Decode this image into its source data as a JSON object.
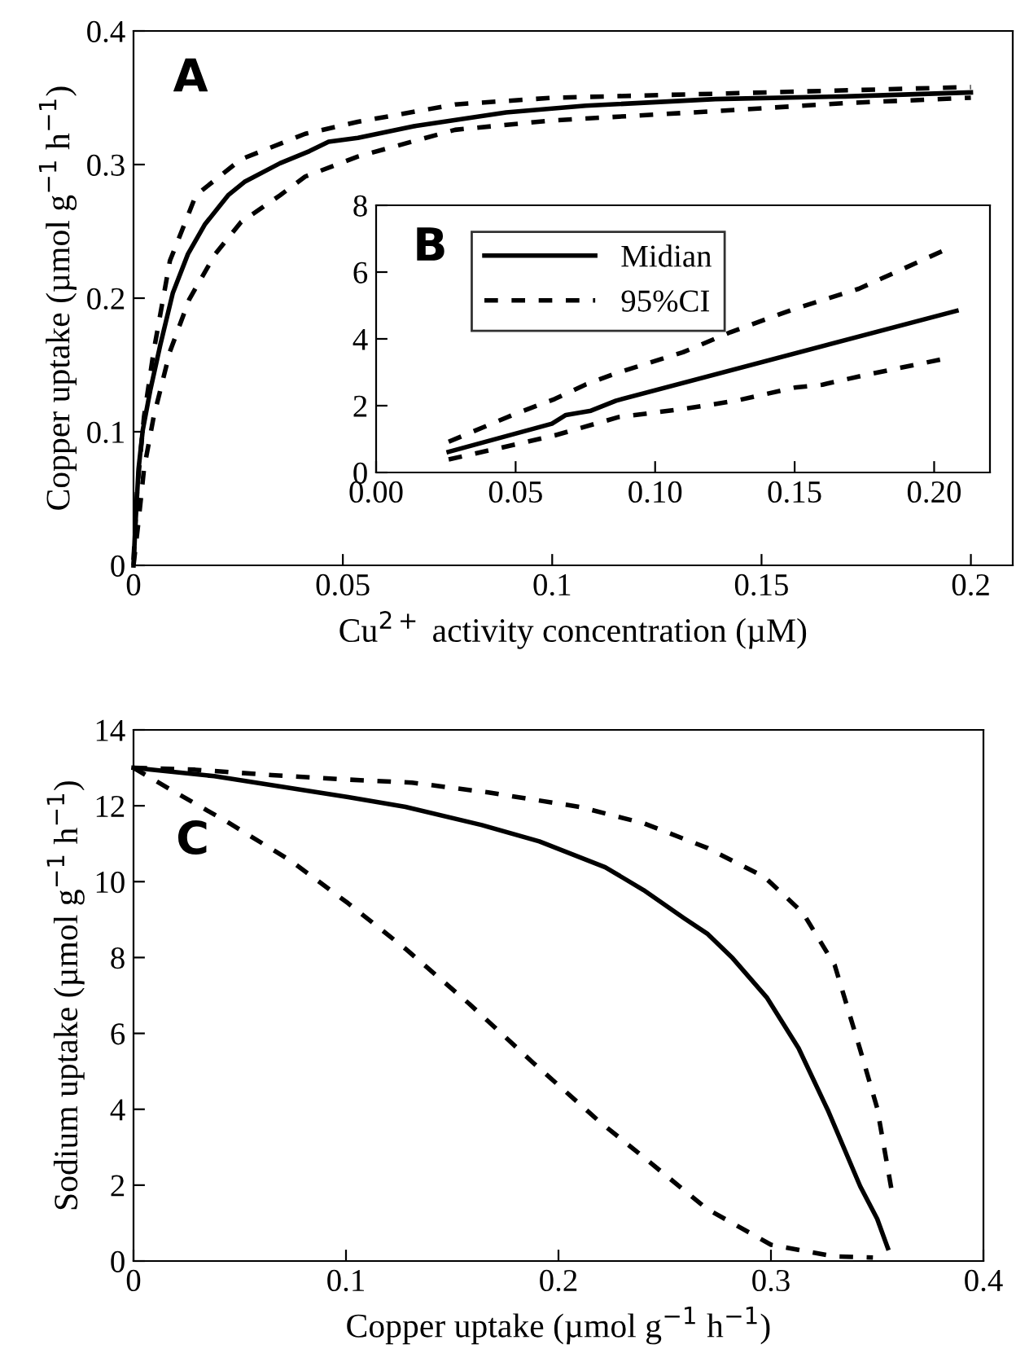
{
  "chart_data": [
    {
      "type": "line",
      "xlabel": "Cu$^{2+}$ activity concentration (µM)",
      "ylabel": "Copper uptake (µmol g$^{−1}$ h$^{−1}$)",
      "annotations": [
        "A"
      ],
      "xlim": [
        0,
        0.21
      ],
      "ylim": [
        0,
        0.4
      ],
      "xticks": [
        0,
        0.05,
        0.1,
        0.15,
        0.2
      ],
      "yticks": [
        0,
        0.1,
        0.2,
        0.3,
        0.4
      ],
      "grid": false,
      "legend": false,
      "marker": "none",
      "series": [
        {
          "color": "#000000",
          "line_style": "solid",
          "x": [
            0,
            0.0005,
            0.0012,
            0.0022,
            0.004,
            0.0064,
            0.0094,
            0.013,
            0.017,
            0.0226,
            0.0265,
            0.035,
            0.042,
            0.0466,
            0.0536,
            0.0675,
            0.089,
            0.108,
            0.139,
            0.17,
            0.2
          ],
          "values": [
            0,
            0.033,
            0.072,
            0.101,
            0.131,
            0.165,
            0.204,
            0.233,
            0.255,
            0.277,
            0.287,
            0.301,
            0.31,
            0.317,
            0.32,
            0.329,
            0.339,
            0.344,
            0.349,
            0.351,
            0.354
          ]
        },
        {
          "color": "#000000",
          "line_style": "dashed",
          "x": [
            0,
            0.0009,
            0.0025,
            0.0048,
            0.0087,
            0.0149,
            0.0257,
            0.041,
            0.0536,
            0.0768,
            0.1,
            0.139,
            0.2
          ],
          "values": [
            0.004,
            0.058,
            0.111,
            0.16,
            0.228,
            0.277,
            0.304,
            0.323,
            0.332,
            0.345,
            0.35,
            0.353,
            0.358
          ]
        },
        {
          "color": "#000000",
          "line_style": "dashed",
          "x": [
            0,
            0.0012,
            0.0025,
            0.0048,
            0.0087,
            0.0133,
            0.0195,
            0.0257,
            0.035,
            0.041,
            0.0536,
            0.0768,
            0.1,
            0.139,
            0.17,
            0.2
          ],
          "values": [
            0,
            0.033,
            0.072,
            0.111,
            0.16,
            0.199,
            0.233,
            0.257,
            0.277,
            0.291,
            0.306,
            0.326,
            0.333,
            0.34,
            0.346,
            0.35
          ]
        }
      ]
    },
    {
      "type": "line",
      "annotations": [
        "B"
      ],
      "xlim": [
        0,
        0.22
      ],
      "ylim": [
        0,
        8
      ],
      "xticks": [
        {
          "value": 0,
          "label": "0.00"
        },
        {
          "value": 0.05,
          "label": "0.05"
        },
        {
          "value": 0.1,
          "label": "0.10"
        },
        {
          "value": 0.15,
          "label": "0.15"
        },
        {
          "value": 0.2,
          "label": "0.20"
        }
      ],
      "yticks": [
        0,
        2,
        4,
        6,
        8
      ],
      "grid": false,
      "legend": "top left",
      "marker": "none",
      "series": [
        {
          "name": "Midian",
          "color": "#000000",
          "line_style": "solid",
          "x": [
            0.026,
            0.063,
            0.068,
            0.077,
            0.086,
            0.208
          ],
          "values": [
            0.62,
            1.46,
            1.72,
            1.85,
            2.15,
            4.84
          ]
        },
        {
          "name": "95%CI",
          "color": "#000000",
          "line_style": "dashed",
          "x": [
            0.026,
            0.05,
            0.064,
            0.075,
            0.087,
            0.11,
            0.127,
            0.15,
            0.173,
            0.203
          ],
          "values": [
            0.92,
            1.76,
            2.2,
            2.63,
            3.0,
            3.6,
            4.2,
            4.9,
            5.5,
            6.63
          ]
        },
        {
          "color": "#000000",
          "line_style": "dashed",
          "x": [
            0.026,
            0.05,
            0.064,
            0.087,
            0.11,
            0.129,
            0.15,
            0.16,
            0.176,
            0.204
          ],
          "values": [
            0.39,
            0.84,
            1.11,
            1.66,
            1.9,
            2.15,
            2.54,
            2.63,
            2.93,
            3.41
          ]
        }
      ]
    },
    {
      "type": "line",
      "xlabel": "Copper uptake (µmol g$^{−1}$ h$^{−1}$)",
      "ylabel": "Sodium uptake (µmol g$^{−1}$ h$^{−1}$)",
      "annotations": [
        "C"
      ],
      "xlim": [
        0,
        0.4
      ],
      "ylim": [
        0,
        14
      ],
      "xticks": [
        0,
        0.1,
        0.2,
        0.3,
        0.4
      ],
      "yticks": [
        0,
        2,
        4,
        6,
        8,
        10,
        12,
        14
      ],
      "grid": false,
      "legend": false,
      "marker": "none",
      "series": [
        {
          "color": "#000000",
          "line_style": "solid",
          "x": [
            0,
            0.038,
            0.101,
            0.128,
            0.164,
            0.191,
            0.222,
            0.24,
            0.259,
            0.27,
            0.282,
            0.298,
            0.313,
            0.327,
            0.342,
            0.35,
            0.355
          ],
          "values": [
            13.0,
            12.78,
            12.23,
            11.97,
            11.49,
            11.06,
            10.38,
            9.78,
            9.04,
            8.63,
            7.98,
            6.95,
            5.61,
            3.95,
            1.97,
            1.11,
            0.34
          ]
        },
        {
          "color": "#000000",
          "line_style": "dashed",
          "x": [
            0,
            0.029,
            0.065,
            0.101,
            0.131,
            0.167,
            0.21,
            0.24,
            0.27,
            0.297,
            0.315,
            0.33,
            0.342,
            0.35,
            0.357
          ],
          "values": [
            13.0,
            12.95,
            12.81,
            12.69,
            12.61,
            12.35,
            11.97,
            11.54,
            10.89,
            10.12,
            9.18,
            7.8,
            5.57,
            4.03,
            1.8
          ]
        },
        {
          "color": "#000000",
          "line_style": "dashed",
          "x": [
            0,
            0.017,
            0.044,
            0.074,
            0.101,
            0.128,
            0.158,
            0.188,
            0.219,
            0.24,
            0.27,
            0.3,
            0.33,
            0.348
          ],
          "values": [
            13.0,
            12.44,
            11.58,
            10.55,
            9.43,
            8.23,
            6.78,
            5.23,
            3.69,
            2.74,
            1.37,
            0.43,
            0.12,
            0.09
          ]
        }
      ]
    }
  ]
}
